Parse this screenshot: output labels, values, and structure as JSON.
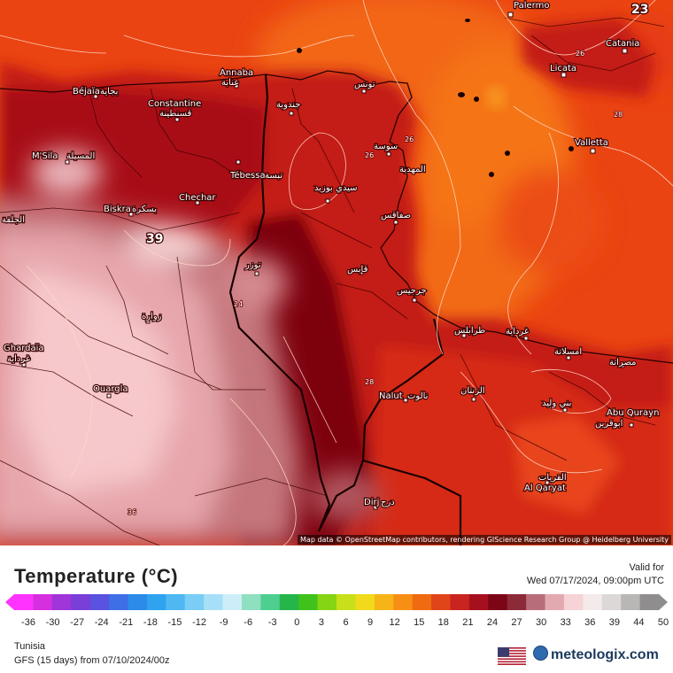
{
  "map": {
    "attribution": "Map data © OpenStreetMap contributors, rendering GIScience Research Group @ Heidelberg University",
    "places": [
      {
        "id": "palermo",
        "label": "Palermo"
      },
      {
        "id": "catania",
        "label": "Catania"
      },
      {
        "id": "licata",
        "label": "Licata"
      },
      {
        "id": "valletta",
        "label": "Valletta"
      },
      {
        "id": "annaba",
        "label": "Annaba",
        "label_ar": "عنابة"
      },
      {
        "id": "bejaia",
        "label": "Béjaïa",
        "label_ar": "بجاية"
      },
      {
        "id": "constantine",
        "label": "Constantine",
        "label_ar": "قسنطينة"
      },
      {
        "id": "tunis",
        "label_ar": "تونس"
      },
      {
        "id": "jendouba",
        "label_ar": "جندوبة"
      },
      {
        "id": "sousse",
        "label_ar": "سوسة"
      },
      {
        "id": "mahdia",
        "label_ar": "المهدية"
      },
      {
        "id": "msila",
        "label": "M'Sila",
        "label_ar": "المسيلة"
      },
      {
        "id": "tebessa",
        "label": "Tébessa",
        "label_ar": "تبسة"
      },
      {
        "id": "sidibouzid",
        "label_ar": "سيدي بوزيد"
      },
      {
        "id": "chechar",
        "label": "Chechar"
      },
      {
        "id": "sfax",
        "label_ar": "صفاقس"
      },
      {
        "id": "biskra",
        "label": "Biskra",
        "label_ar": "بسكرة"
      },
      {
        "id": "djelfa",
        "label_ar": "الجلفة"
      },
      {
        "id": "gafsa",
        "label_ar": "قابس"
      },
      {
        "id": "tozeur",
        "label_ar": "توزر"
      },
      {
        "id": "djerba",
        "label_ar": "جرجيس"
      },
      {
        "id": "touggourt",
        "label": "Touggourt",
        "label_ar": "تقرت"
      },
      {
        "id": "zuwara",
        "label_ar": "زوارة"
      },
      {
        "id": "tripoli",
        "label_ar": "طرابلس"
      },
      {
        "id": "ghardaia",
        "label": "Ghardaïa",
        "label_ar": "غرداية"
      },
      {
        "id": "msallata",
        "label_ar": "امسلاتة"
      },
      {
        "id": "misrata",
        "label_ar": "مصراتة"
      },
      {
        "id": "ouargla",
        "label": "Ouargla"
      },
      {
        "id": "nalut",
        "label": "Nalut",
        "label_ar": "نالوت"
      },
      {
        "id": "zintan",
        "label_ar": "الزنتان"
      },
      {
        "id": "banywalid",
        "label_ar": "بني وليد"
      },
      {
        "id": "abuqurayn",
        "label": "Abu Qurayn",
        "label_ar": "ابوقرين"
      },
      {
        "id": "alqaryat",
        "label": "Al Qaryat",
        "label_ar": "القريات"
      },
      {
        "id": "dirj",
        "label": "Dirj",
        "label_ar": "درج"
      }
    ],
    "values": [
      {
        "id": "v39",
        "text": "39"
      },
      {
        "id": "v23",
        "text": "23"
      }
    ],
    "contour_labels": [
      "26",
      "28",
      "26",
      "26",
      "24",
      "28",
      "36"
    ]
  },
  "legend": {
    "title": "Temperature (°C)",
    "valid_label": "Valid for",
    "valid_time": "Wed 07/17/2024, 09:00pm UTC",
    "ticks": [
      "-36",
      "-30",
      "-27",
      "-24",
      "-21",
      "-18",
      "-15",
      "-12",
      "-9",
      "-6",
      "-3",
      "0",
      "3",
      "6",
      "9",
      "12",
      "15",
      "18",
      "21",
      "24",
      "27",
      "30",
      "33",
      "36",
      "39",
      "44",
      "50"
    ],
    "colors": [
      "#ff33ff",
      "#d62fe0",
      "#a035d9",
      "#7a3fd8",
      "#5a52e0",
      "#3f6fe6",
      "#2c8ae8",
      "#2fa3ee",
      "#4fb8f2",
      "#7acdf5",
      "#a6dff7",
      "#cdeef8",
      "#8fe0c0",
      "#4fcf8f",
      "#25b54a",
      "#3fc21a",
      "#86d414",
      "#c8e01a",
      "#f1da1c",
      "#f7b419",
      "#f78f14",
      "#ef6a10",
      "#e0451a",
      "#c92420",
      "#a6101e",
      "#7d0616",
      "#8d2a38",
      "#b86d7a",
      "#e3a9b1",
      "#f5d3d6",
      "#f4eaea",
      "#dcd8d8",
      "#b9b6b6",
      "#8f8d8d"
    ],
    "region": "Tunisia",
    "model": "GFS (15 days) from 07/10/2024/00z",
    "brand": "meteologix.com"
  }
}
